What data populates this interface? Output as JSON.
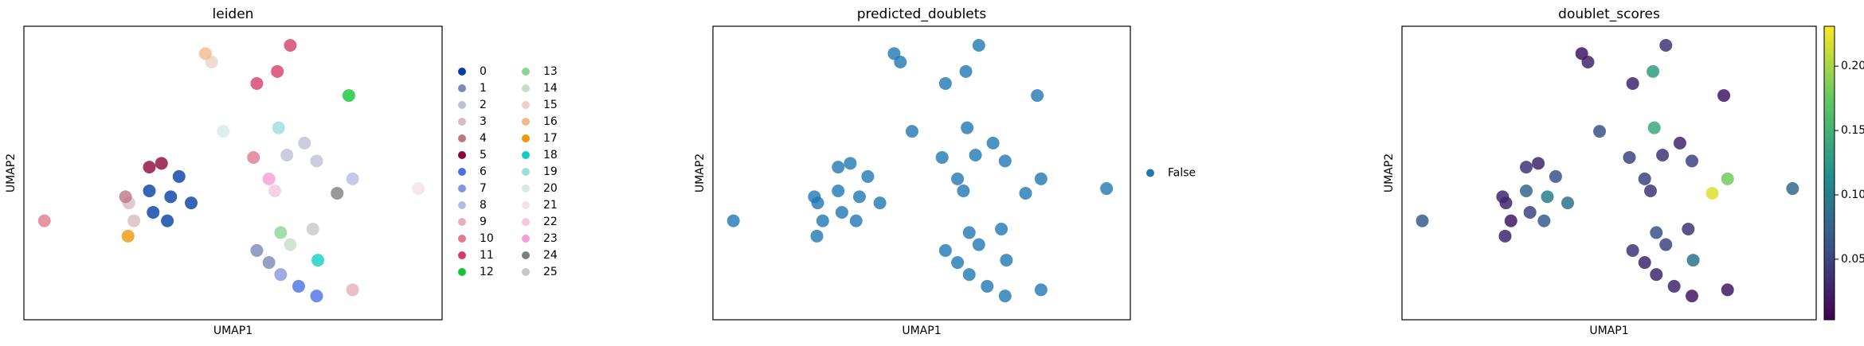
{
  "chart_data": [
    {
      "type": "scatter",
      "title": "leiden",
      "xlabel": "UMAP1",
      "ylabel": "UMAP2",
      "xlim": [
        0,
        100
      ],
      "ylim": [
        0,
        100
      ],
      "legend": "right",
      "legend_columns": 2,
      "series": [
        {
          "name": "0",
          "color": "#023fa5",
          "x": [
            35.1,
            30.0,
            40.0,
            34.3,
            37.1,
            30.9
          ],
          "y": [
            41.9,
            43.9,
            39.8,
            33.7,
            48.8,
            36.6
          ]
        },
        {
          "name": "1",
          "color": "#7d87b9",
          "x": [
            55.7,
            58.6
          ],
          "y": [
            23.6,
            19.5
          ]
        },
        {
          "name": "2",
          "color": "#bec1d4",
          "x": [
            62.9,
            67.1,
            70.0
          ],
          "y": [
            56.1,
            60.2,
            54.1
          ]
        },
        {
          "name": "3",
          "color": "#d6bcc0",
          "x": [
            25.1,
            26.3
          ],
          "y": [
            39.8,
            33.7
          ]
        },
        {
          "name": "4",
          "color": "#bb7784",
          "x": [
            24.3
          ],
          "y": [
            41.9
          ]
        },
        {
          "name": "5",
          "color": "#8e063b",
          "x": [
            30.0,
            32.9
          ],
          "y": [
            52.0,
            53.3
          ]
        },
        {
          "name": "6",
          "color": "#4a6fe3",
          "x": [
            65.7,
            70.0
          ],
          "y": [
            11.4,
            8.1
          ]
        },
        {
          "name": "7",
          "color": "#8595e1",
          "x": [
            61.4
          ],
          "y": [
            15.4
          ]
        },
        {
          "name": "8",
          "color": "#b5bbe3",
          "x": [
            78.6
          ],
          "y": [
            48.0
          ]
        },
        {
          "name": "9",
          "color": "#e6afb9",
          "x": [
            78.6
          ],
          "y": [
            10.2
          ]
        },
        {
          "name": "10",
          "color": "#e07b91",
          "x": [
            54.9,
            4.9
          ],
          "y": [
            55.3,
            33.7
          ]
        },
        {
          "name": "11",
          "color": "#d33f6a",
          "x": [
            55.7,
            60.6,
            63.7
          ],
          "y": [
            80.5,
            84.6,
            93.5
          ]
        },
        {
          "name": "12",
          "color": "#11c638",
          "x": [
            77.7
          ],
          "y": [
            76.4
          ]
        },
        {
          "name": "13",
          "color": "#8dd593",
          "x": [
            61.4
          ],
          "y": [
            29.7
          ]
        },
        {
          "name": "14",
          "color": "#c6dec7",
          "x": [
            63.7
          ],
          "y": [
            25.6
          ]
        },
        {
          "name": "15",
          "color": "#ead3c6",
          "x": [
            44.9
          ],
          "y": [
            87.8
          ]
        },
        {
          "name": "16",
          "color": "#f0b98d",
          "x": [
            43.4
          ],
          "y": [
            90.7
          ]
        },
        {
          "name": "17",
          "color": "#ef9708",
          "x": [
            24.9
          ],
          "y": [
            28.5
          ]
        },
        {
          "name": "18",
          "color": "#0fcfc0",
          "x": [
            70.3
          ],
          "y": [
            20.3
          ]
        },
        {
          "name": "19",
          "color": "#9cded6",
          "x": [
            60.9
          ],
          "y": [
            65.4
          ]
        },
        {
          "name": "20",
          "color": "#d5eae7",
          "x": [
            47.7
          ],
          "y": [
            64.2
          ]
        },
        {
          "name": "21",
          "color": "#f3e1eb",
          "x": [
            94.3
          ],
          "y": [
            44.7
          ]
        },
        {
          "name": "22",
          "color": "#f6c4e1",
          "x": [
            60.0
          ],
          "y": [
            43.9
          ]
        },
        {
          "name": "23",
          "color": "#f79cd4",
          "x": [
            58.6
          ],
          "y": [
            48.0
          ]
        },
        {
          "name": "24",
          "color": "#7f7f7f",
          "x": [
            74.9
          ],
          "y": [
            43.1
          ]
        },
        {
          "name": "25",
          "color": "#c7c7c7",
          "x": [
            69.1
          ],
          "y": [
            30.9
          ]
        }
      ]
    },
    {
      "type": "scatter",
      "title": "predicted_doublets",
      "xlabel": "UMAP1",
      "ylabel": "UMAP2",
      "xlim": [
        0,
        100
      ],
      "ylim": [
        0,
        100
      ],
      "legend": "right",
      "legend_columns": 1,
      "series": [
        {
          "name": "False",
          "color": "#1f77b4",
          "x": [
            35.1,
            30.0,
            40.0,
            34.3,
            37.1,
            30.9,
            55.7,
            58.6,
            62.9,
            67.1,
            70.0,
            25.1,
            26.3,
            24.3,
            30.0,
            32.9,
            65.7,
            70.0,
            61.4,
            78.6,
            78.6,
            54.9,
            4.9,
            55.7,
            60.6,
            63.7,
            77.7,
            61.4,
            63.7,
            44.9,
            43.4,
            24.9,
            70.3,
            60.9,
            47.7,
            94.3,
            60.0,
            58.6,
            74.9,
            69.1
          ],
          "y": [
            41.9,
            43.9,
            39.8,
            33.7,
            48.8,
            36.6,
            23.6,
            19.5,
            56.1,
            60.2,
            54.1,
            39.8,
            33.7,
            41.9,
            52.0,
            53.3,
            11.4,
            8.1,
            15.4,
            48.0,
            10.2,
            55.3,
            33.7,
            80.5,
            84.6,
            93.5,
            76.4,
            29.7,
            25.6,
            87.8,
            90.7,
            28.5,
            20.3,
            65.4,
            64.2,
            44.7,
            43.9,
            48.0,
            43.1,
            30.9
          ]
        }
      ]
    },
    {
      "type": "colored_scatter",
      "title": "doublet_scores",
      "xlabel": "UMAP1",
      "ylabel": "UMAP2",
      "xlim": [
        0,
        100
      ],
      "ylim": [
        0,
        100
      ],
      "colormap": "viridis",
      "clim": [
        0.003,
        0.231
      ],
      "cticks": [
        0.05,
        {
          "value": 0.1,
          "label": "0.10"
        },
        0.15,
        {
          "value": 0.2,
          "label": "0.20"
        }
      ],
      "x": [
        35.1,
        30.0,
        40.0,
        34.3,
        37.1,
        30.9,
        55.7,
        58.6,
        62.9,
        67.1,
        70.0,
        25.1,
        26.3,
        24.3,
        30.0,
        32.9,
        65.7,
        70.0,
        61.4,
        78.6,
        78.6,
        54.9,
        4.9,
        55.7,
        60.6,
        63.7,
        77.7,
        61.4,
        63.7,
        44.9,
        43.4,
        24.9,
        70.3,
        60.9,
        47.7,
        94.3,
        60.0,
        58.6,
        74.9,
        69.1
      ],
      "y": [
        41.9,
        43.9,
        39.8,
        33.7,
        48.8,
        36.6,
        23.6,
        19.5,
        56.1,
        60.2,
        54.1,
        39.8,
        33.7,
        41.9,
        52.0,
        53.3,
        11.4,
        8.1,
        15.4,
        48.0,
        10.2,
        55.3,
        33.7,
        80.5,
        84.6,
        93.5,
        76.4,
        29.7,
        25.6,
        87.8,
        90.7,
        28.5,
        20.3,
        65.4,
        64.2,
        44.7,
        43.9,
        48.0,
        43.1,
        30.9
      ],
      "values": [
        0.1,
        0.08,
        0.09,
        0.07,
        0.06,
        0.05,
        0.04,
        0.03,
        0.04,
        0.03,
        0.05,
        0.03,
        0.02,
        0.03,
        0.04,
        0.03,
        0.03,
        0.02,
        0.03,
        0.18,
        0.02,
        0.05,
        0.07,
        0.03,
        0.13,
        0.04,
        0.02,
        0.06,
        0.05,
        0.03,
        0.02,
        0.03,
        0.09,
        0.14,
        0.06,
        0.08,
        0.04,
        0.05,
        0.22,
        0.04
      ]
    }
  ]
}
